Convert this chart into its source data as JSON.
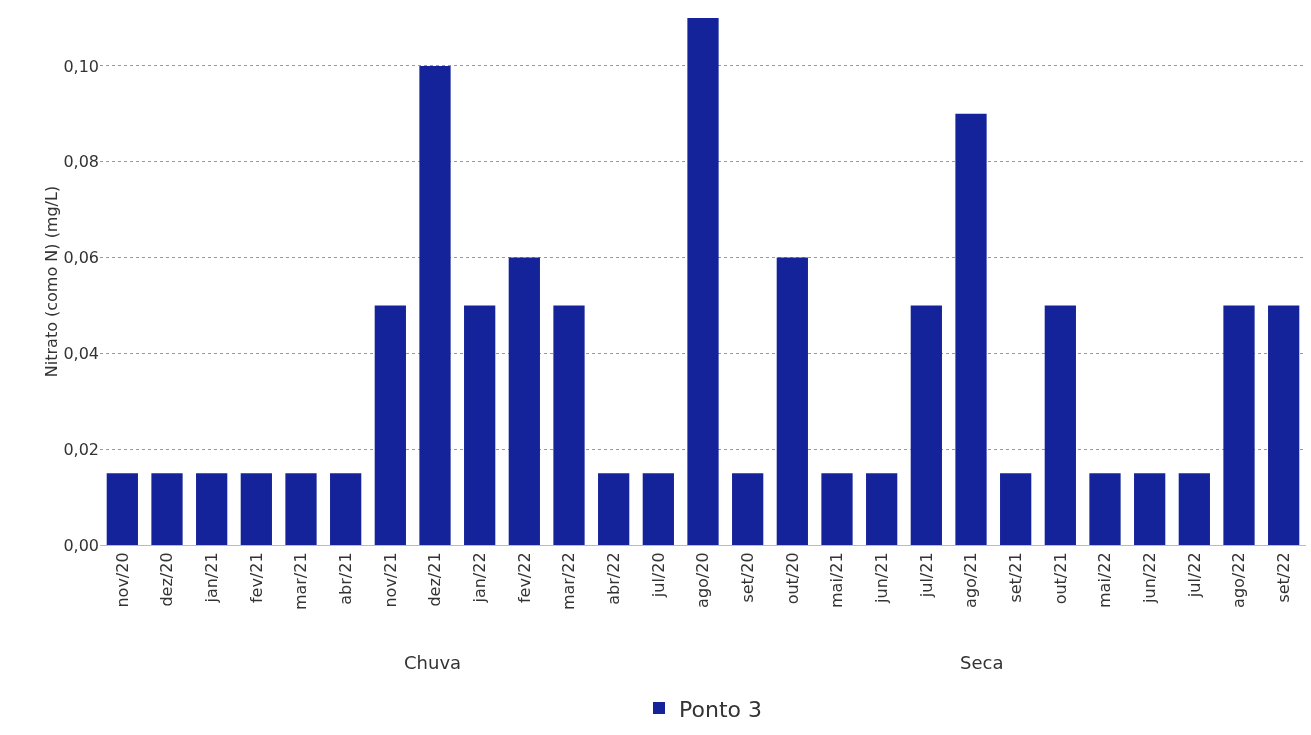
{
  "chart_data": {
    "type": "bar",
    "ylabel": "Nitrato (como N) (mg/L)",
    "categories": [
      "nov/20",
      "dez/20",
      "jan/21",
      "fev/21",
      "mar/21",
      "abr/21",
      "nov/21",
      "dez/21",
      "jan/22",
      "fev/22",
      "mar/22",
      "abr/22",
      "jul/20",
      "ago/20",
      "set/20",
      "out/20",
      "mai/21",
      "jun/21",
      "jul/21",
      "ago/21",
      "set/21",
      "out/21",
      "mai/22",
      "jun/22",
      "jul/22",
      "ago/22",
      "set/22"
    ],
    "series": [
      {
        "name": "Ponto 3",
        "color": "#15239a",
        "values": [
          0.015,
          0.015,
          0.015,
          0.015,
          0.015,
          0.015,
          0.05,
          0.1,
          0.05,
          0.06,
          0.05,
          0.015,
          0.015,
          0.11,
          0.015,
          0.06,
          0.015,
          0.015,
          0.05,
          0.09,
          0.015,
          0.05,
          0.015,
          0.015,
          0.015,
          0.05,
          0.05
        ]
      }
    ],
    "ylim": [
      0,
      0.11
    ],
    "yticks": [
      {
        "value": 0,
        "label": "0,00"
      },
      {
        "value": 0.02,
        "label": "0,02"
      },
      {
        "value": 0.04,
        "label": "0,04"
      },
      {
        "value": 0.06,
        "label": "0,06"
      },
      {
        "value": 0.08,
        "label": "0,08"
      },
      {
        "value": 0.1,
        "label": "0,10"
      }
    ],
    "grid": "y",
    "legend": "bottom",
    "annotations": [
      "Chuva",
      "Seca"
    ]
  }
}
